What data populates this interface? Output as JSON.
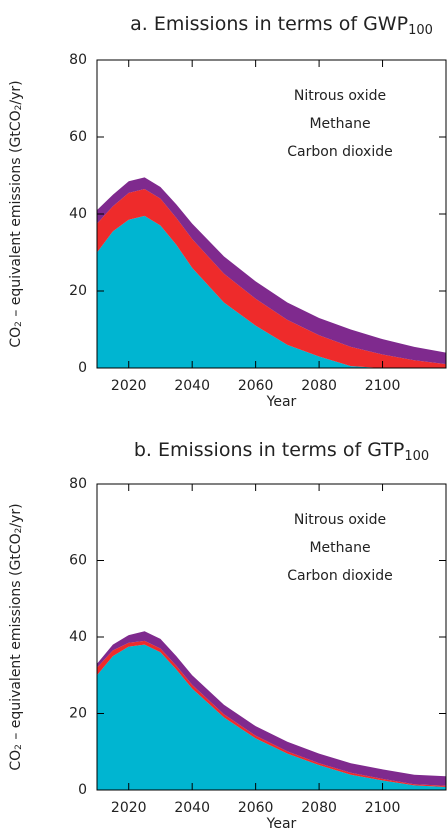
{
  "chart_data": [
    {
      "type": "stacked_area",
      "title": [
        "a. Emissions in terms of GWP",
        "100"
      ],
      "ylabel": [
        "CO",
        "2",
        " – equivalent emissions (GtCO",
        "2",
        "/yr)"
      ],
      "xlabel": "Year",
      "x": [
        2010,
        2015,
        2020,
        2025,
        2030,
        2035,
        2040,
        2050,
        2060,
        2070,
        2080,
        2090,
        2100,
        2110,
        2120
      ],
      "xlim": [
        2010,
        2120
      ],
      "xticks": [
        2020,
        2040,
        2060,
        2080,
        2100
      ],
      "ylim": [
        0,
        80
      ],
      "yticks": [
        0,
        20,
        40,
        60,
        80
      ],
      "series": [
        {
          "name": "Carbon dioxide",
          "color": "#00b5d1",
          "values": [
            30,
            35.5,
            38.5,
            39.5,
            37,
            32,
            26,
            17,
            11,
            6,
            3,
            0.5,
            0,
            0,
            0
          ]
        },
        {
          "name": "Methane",
          "color": "#ee2b2b",
          "values": [
            7.5,
            6.5,
            7,
            7,
            7,
            7,
            7.5,
            7.5,
            7,
            6.5,
            5.5,
            5,
            3.5,
            2,
            1
          ]
        },
        {
          "name": "Nitrous oxide",
          "color": "#7f2a8e",
          "values": [
            3.5,
            3,
            3,
            3,
            3,
            3.5,
            4,
            4.5,
            4.5,
            4.5,
            4.5,
            4.5,
            4,
            3.5,
            3
          ]
        }
      ]
    },
    {
      "type": "stacked_area",
      "title": [
        "b. Emissions in terms of GTP",
        "100"
      ],
      "ylabel": [
        "CO",
        "2",
        " – equivalent emissions (GtCO",
        "2",
        "/yr)"
      ],
      "xlabel": "Year",
      "x": [
        2010,
        2015,
        2020,
        2025,
        2030,
        2035,
        2040,
        2050,
        2060,
        2070,
        2080,
        2090,
        2100,
        2110,
        2120
      ],
      "xlim": [
        2010,
        2120
      ],
      "xticks": [
        2020,
        2040,
        2060,
        2080,
        2100
      ],
      "ylim": [
        0,
        80
      ],
      "yticks": [
        0,
        20,
        40,
        60,
        80
      ],
      "series": [
        {
          "name": "Carbon dioxide",
          "color": "#00b5d1",
          "values": [
            30,
            35,
            37.5,
            38,
            36,
            31.5,
            26.5,
            19,
            13.5,
            9.5,
            6.5,
            4,
            2.5,
            1.2,
            0.8
          ]
        },
        {
          "name": "Methane",
          "color": "#ee2b2b",
          "values": [
            2,
            1.5,
            1,
            1,
            1,
            1,
            1,
            0.8,
            0.7,
            0.6,
            0.5,
            0.5,
            0.4,
            0.3,
            0.3
          ]
        },
        {
          "name": "Nitrous oxide",
          "color": "#7f2a8e",
          "values": [
            1,
            1.5,
            2,
            2.5,
            2.5,
            2.5,
            2.5,
            2.5,
            2.5,
            2.5,
            2.5,
            2.5,
            2.5,
            2.5,
            2.5
          ]
        }
      ]
    }
  ]
}
